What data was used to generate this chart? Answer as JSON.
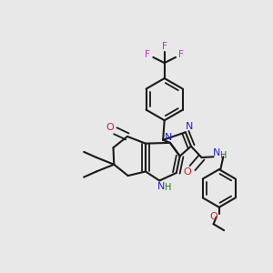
{
  "bg_color": "#e8e8e8",
  "bond_color": "#1a1a1a",
  "n_color": "#2222cc",
  "o_color": "#cc2222",
  "f_color": "#cc22cc",
  "h_color": "#117711",
  "figsize": [
    3.0,
    3.0
  ],
  "dpi": 100,
  "xlim": [
    0,
    300
  ],
  "ylim": [
    0,
    300
  ]
}
